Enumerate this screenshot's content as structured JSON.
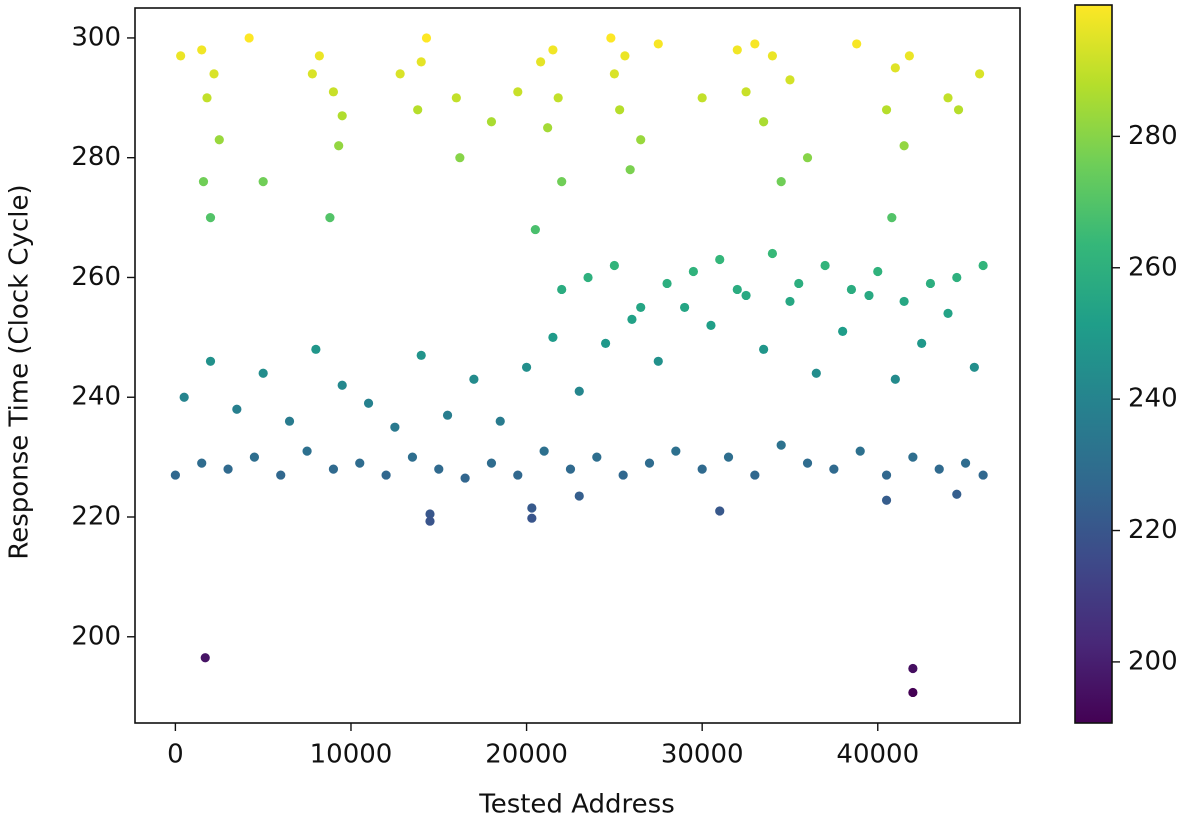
{
  "chart_data": {
    "type": "scatter",
    "x_label": "Tested Address",
    "y_label": "Response Time (Clock Cycle)",
    "x": [
      0,
      1500,
      3000,
      4500,
      6000,
      7500,
      9000,
      10500,
      12000,
      13500,
      15000,
      16500,
      18000,
      19500,
      21000,
      22500,
      24000,
      25500,
      27000,
      28500,
      30000,
      31500,
      33000,
      34500,
      36000,
      37500,
      39000,
      40500,
      42000,
      43500,
      45000,
      46000,
      500,
      2000,
      3500,
      5000,
      6500,
      8000,
      9500,
      11000,
      12500,
      14000,
      15500,
      17000,
      18500,
      20000,
      21500,
      23000,
      24500,
      26000,
      27500,
      29000,
      30500,
      32000,
      33500,
      35000,
      36500,
      38000,
      39500,
      41000,
      42500,
      44000,
      45500,
      22000,
      23500,
      25000,
      26500,
      28000,
      29500,
      31000,
      32500,
      34000,
      35500,
      37000,
      38500,
      40000,
      41500,
      43000,
      44500,
      46000,
      1500,
      1800,
      2200,
      2500,
      2000,
      1600,
      7800,
      8200,
      9000,
      9300,
      9500,
      8800,
      14000,
      14300,
      13800,
      16000,
      16200,
      20800,
      21200,
      21500,
      22000,
      21800,
      20500,
      24800,
      25000,
      25300,
      25600,
      25900,
      26500,
      27500,
      32000,
      32500,
      33000,
      33500,
      34000,
      34500,
      35000,
      36000,
      40500,
      41000,
      41500,
      41800,
      40800,
      4200,
      300,
      5000,
      12800,
      18000,
      19500,
      30000,
      38800,
      44600,
      45800,
      44000,
      1700,
      42000,
      42000,
      14500,
      14500,
      20300,
      20300,
      31000,
      23000,
      40500,
      44500
    ],
    "y": [
      227,
      229,
      228,
      230,
      227,
      231,
      228,
      229,
      227,
      230,
      228,
      226.5,
      229,
      227,
      231,
      228,
      230,
      227,
      229,
      231,
      228,
      230,
      227,
      232,
      229,
      228,
      231,
      227,
      230,
      228,
      229,
      227,
      240,
      246,
      238,
      244,
      236,
      248,
      242,
      239,
      235,
      247,
      237,
      243,
      236,
      245,
      250,
      241,
      249,
      253,
      246,
      255,
      252,
      258,
      248,
      256,
      244,
      251,
      257,
      243,
      249,
      254,
      245,
      258,
      260,
      262,
      255,
      259,
      261,
      263,
      257,
      264,
      259,
      262,
      258,
      261,
      256,
      259,
      260,
      262,
      298,
      290,
      294,
      283,
      270,
      276,
      294,
      297,
      291,
      282,
      287,
      270,
      296,
      300,
      288,
      290,
      280,
      296,
      285,
      298,
      276,
      290,
      268,
      300,
      294,
      288,
      297,
      278,
      283,
      299,
      298,
      291,
      299,
      286,
      297,
      276,
      293,
      280,
      288,
      295,
      282,
      297,
      270,
      300,
      297,
      276,
      294,
      286,
      291,
      290,
      299,
      288,
      294,
      290,
      196.5,
      194.7,
      190.7,
      220.5,
      219.3,
      221.5,
      219.8,
      221,
      223.5,
      222.8,
      223.8
    ],
    "xlim": [
      -2300,
      48100
    ],
    "ylim": [
      185.6,
      305
    ],
    "xticks": [
      0,
      10000,
      20000,
      30000,
      40000
    ],
    "yticks": [
      200,
      220,
      240,
      260,
      280,
      300
    ],
    "colorbar": {
      "lim": [
        190.7,
        300
      ],
      "ticks": [
        200,
        220,
        240,
        260,
        280
      ]
    },
    "colormap": [
      "#440154",
      "#482878",
      "#3e4989",
      "#31688e",
      "#26828e",
      "#1f9e89",
      "#35b779",
      "#6ece58",
      "#b5de2b",
      "#fde725"
    ],
    "grid": false
  }
}
